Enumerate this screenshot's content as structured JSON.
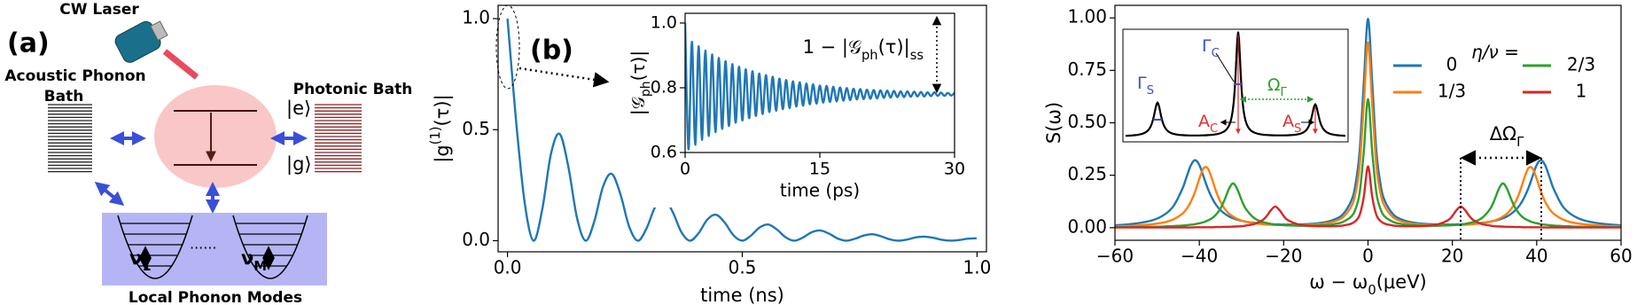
{
  "panel_a": {
    "label": "(a)",
    "laser": "CW Laser",
    "acoustic_bath": [
      "Acoustic Phonon",
      "Bath"
    ],
    "photonic_bath": "Photonic Bath",
    "excited_state": "|e⟩",
    "ground_state": "|g⟩",
    "mode_first": [
      "ν",
      {
        "sub": "1"
      }
    ],
    "mode_last": [
      "ν",
      {
        "sub": "M"
      }
    ],
    "dots": "......",
    "local_modes": "Local Phonon Modes"
  },
  "inset_c": {
    "gamma_s": [
      "Γ",
      {
        "sub": "S"
      }
    ],
    "gamma_c": [
      "Γ",
      {
        "sub": "C"
      }
    ],
    "omega_gamma": [
      "Ω",
      {
        "sub": "Γ"
      }
    ],
    "a_c": [
      "A",
      {
        "sub": "C"
      }
    ],
    "a_s": [
      "A",
      {
        "sub": "S"
      }
    ]
  },
  "chart_data": [
    {
      "type": "line",
      "panel_label": "(b)",
      "xlabel": "time (ns)",
      "ylabel": [
        "|g",
        {
          "sup": "(1)"
        },
        "(τ)|"
      ],
      "xlim": [
        -0.02,
        1.02
      ],
      "ylim": [
        -0.05,
        1.06
      ],
      "xticks": [
        {
          "value": 0,
          "label": "0.0"
        },
        0.5,
        {
          "value": 1,
          "label": "1.0"
        }
      ],
      "yticks": [
        {
          "value": 0,
          "label": "0.0"
        },
        0.5,
        {
          "value": 1,
          "label": "1.0"
        }
      ],
      "x": [
        0,
        0.0185,
        0.037,
        0.0555,
        0.074,
        0.0925,
        0.111,
        0.1295,
        0.148,
        0.1665,
        0.185,
        0.2035,
        0.222,
        0.2405,
        0.259,
        0.2775,
        0.296,
        0.3145,
        0.333,
        0.3515,
        0.37,
        0.3885,
        0.407,
        0.4255,
        0.444,
        0.4625,
        0.481,
        0.4995,
        0.518,
        0.5365,
        0.555,
        0.5735,
        0.592,
        0.6105,
        0.629,
        0.6475,
        0.666,
        0.6845,
        0.703,
        0.7215,
        0.74,
        0.7585,
        0.777,
        0.7955,
        0.814,
        0.8325,
        0.851,
        0.8695,
        0.888,
        0.9065,
        0.925,
        0.9435,
        0.962,
        0.9805,
        0.999
      ],
      "series": [
        {
          "color": "#1f77b4",
          "values": [
            1.0,
            0.534,
            0.165,
            0,
            0.141,
            0.39,
            0.481,
            0.334,
            0.103,
            0,
            0.088,
            0.244,
            0.301,
            0.209,
            0.064,
            0,
            0.055,
            0.152,
            0.188,
            0.131,
            0.04,
            0,
            0.034,
            0.095,
            0.117,
            0.082,
            0.025,
            0,
            0.022,
            0.059,
            0.073,
            0.051,
            0.016,
            0,
            0.014,
            0.038,
            0.046,
            0.032,
            0.01,
            0,
            0.009,
            0.023,
            0.029,
            0.02,
            0.006,
            0,
            0.005,
            0.015,
            0.018,
            0.013,
            0.004,
            0,
            0.003,
            0.009,
            0.011
          ]
        }
      ]
    },
    {
      "type": "line",
      "xlabel": "time (ps)",
      "ylabel": [
        "|𝒢",
        {
          "sub": "ph"
        },
        "(τ)|"
      ],
      "annotation": [
        "1 − |𝒢",
        {
          "sub": "ph"
        },
        "(τ)|",
        {
          "sub": "ss"
        }
      ],
      "xlim": [
        0,
        30
      ],
      "ylim": [
        0.6,
        1.03
      ],
      "xticks": [
        0,
        15,
        30
      ],
      "yticks": [
        0.6,
        0.8,
        {
          "value": 1,
          "label": "1.0"
        }
      ],
      "x": [
        0,
        0.375,
        0.75,
        1.125,
        1.5,
        1.875,
        2.25,
        2.625,
        3,
        3.375,
        3.75,
        4.125,
        4.5,
        4.875,
        5.25,
        5.625,
        6,
        6.375,
        6.75,
        7.125,
        7.5,
        7.875,
        8.25,
        8.625,
        9,
        9.375,
        9.75,
        10.125,
        10.5,
        10.875,
        11.25,
        11.625,
        12,
        12.375,
        12.75,
        13.125,
        13.5,
        13.875,
        14.25,
        14.625,
        15,
        15.375,
        15.75,
        16.125,
        16.5,
        16.875,
        17.25,
        17.625,
        18,
        18.375,
        18.75,
        19.125,
        19.5,
        19.875,
        20.25,
        20.625,
        21,
        21.375,
        21.75,
        22.125,
        22.5,
        22.875,
        23.25,
        23.625,
        24,
        24.375,
        24.75,
        25.125,
        25.5,
        25.875,
        26.25,
        26.625,
        27,
        27.375,
        27.75,
        28.125,
        28.5,
        28.875,
        29.25,
        29.625,
        30
      ],
      "series": [
        {
          "color": "#1f77b4",
          "values": [
            1.0,
            0.61,
            0.942,
            0.624,
            0.928,
            0.639,
            0.915,
            0.651,
            0.903,
            0.663,
            0.892,
            0.673,
            0.882,
            0.682,
            0.873,
            0.692,
            0.865,
            0.699,
            0.857,
            0.706,
            0.851,
            0.713,
            0.844,
            0.719,
            0.839,
            0.725,
            0.834,
            0.729,
            0.828,
            0.734,
            0.824,
            0.737,
            0.82,
            0.742,
            0.817,
            0.745,
            0.813,
            0.749,
            0.811,
            0.751,
            0.807,
            0.754,
            0.806,
            0.756,
            0.803,
            0.758,
            0.801,
            0.76,
            0.799,
            0.762,
            0.797,
            0.764,
            0.796,
            0.765,
            0.794,
            0.766,
            0.793,
            0.767,
            0.792,
            0.769,
            0.791,
            0.77,
            0.79,
            0.771,
            0.789,
            0.771,
            0.789,
            0.772,
            0.788,
            0.773,
            0.787,
            0.773,
            0.786,
            0.774,
            0.786,
            0.775,
            0.785,
            0.775,
            0.784,
            0.776,
            0.784
          ]
        }
      ]
    },
    {
      "type": "line",
      "panel_label": "(c)",
      "xlabel": [
        "ω − ω",
        {
          "sub": "0"
        },
        "(μeV)"
      ],
      "ylabel": "S(ω)",
      "legend_title": "η/ν =",
      "annotation": [
        "ΔΩ",
        {
          "sub": "Γ"
        }
      ],
      "xlim": [
        -60,
        60
      ],
      "ylim": [
        -0.06,
        1.06
      ],
      "xticks": [
        {
          "value": -60,
          "label": "−60"
        },
        {
          "value": -40,
          "label": "−40"
        },
        {
          "value": -20,
          "label": "−20"
        },
        0,
        20,
        40,
        60
      ],
      "yticks": [
        {
          "value": 0,
          "label": "0.00"
        },
        {
          "value": 0.25,
          "label": "0.25"
        },
        {
          "value": 0.5,
          "label": "0.50"
        },
        {
          "value": 0.75,
          "label": "0.75"
        },
        {
          "value": 1,
          "label": "1.00"
        }
      ],
      "x": [
        -60,
        -55,
        -51,
        -48,
        -46,
        -44,
        -43,
        -42,
        -41,
        -40,
        -39,
        -38,
        -37,
        -36,
        -35,
        -34,
        -33,
        -32,
        -31,
        -30,
        -29,
        -27,
        -25,
        -24,
        -23,
        -22,
        -21,
        -20,
        -19,
        -16,
        -13,
        -10,
        -8,
        -6,
        -4,
        -3,
        -2,
        -1,
        0,
        1,
        2,
        3,
        4,
        6,
        8,
        10,
        13,
        16,
        19,
        20,
        21,
        22,
        23,
        24,
        25,
        27,
        29,
        30,
        31,
        32,
        33,
        34,
        35,
        36,
        37,
        38,
        39,
        40,
        41,
        42,
        43,
        44,
        46,
        48,
        51,
        55,
        60
      ],
      "series": [
        {
          "name": "0",
          "color": "#1f77b4",
          "values": [
            0.011,
            0.02,
            0.036,
            0.066,
            0.107,
            0.186,
            0.243,
            0.298,
            0.322,
            0.299,
            0.244,
            0.187,
            0.142,
            0.108,
            0.084,
            0.067,
            0.054,
            0.045,
            0.038,
            0.033,
            0.029,
            0.023,
            0.019,
            0.018,
            0.017,
            0.016,
            0.016,
            0.015,
            0.015,
            0.016,
            0.019,
            0.027,
            0.039,
            0.063,
            0.127,
            0.203,
            0.361,
            0.691,
            0.995,
            0.691,
            0.361,
            0.203,
            0.127,
            0.063,
            0.039,
            0.027,
            0.019,
            0.016,
            0.015,
            0.015,
            0.016,
            0.016,
            0.017,
            0.018,
            0.019,
            0.023,
            0.029,
            0.033,
            0.038,
            0.045,
            0.054,
            0.067,
            0.084,
            0.108,
            0.142,
            0.187,
            0.244,
            0.299,
            0.322,
            0.298,
            0.243,
            0.186,
            0.107,
            0.066,
            0.036,
            0.02,
            0.011
          ]
        },
        {
          "name": "1/3",
          "color": "#ff7f0e",
          "values": [
            0.006,
            0.01,
            0.017,
            0.027,
            0.041,
            0.067,
            0.09,
            0.124,
            0.172,
            0.233,
            0.283,
            0.283,
            0.233,
            0.172,
            0.124,
            0.091,
            0.068,
            0.053,
            0.042,
            0.034,
            0.029,
            0.021,
            0.017,
            0.015,
            0.014,
            0.013,
            0.013,
            0.012,
            0.012,
            0.012,
            0.015,
            0.021,
            0.03,
            0.049,
            0.1,
            0.161,
            0.293,
            0.587,
            0.883,
            0.587,
            0.293,
            0.161,
            0.1,
            0.049,
            0.03,
            0.021,
            0.015,
            0.012,
            0.012,
            0.012,
            0.013,
            0.013,
            0.014,
            0.015,
            0.017,
            0.021,
            0.029,
            0.034,
            0.042,
            0.053,
            0.068,
            0.091,
            0.124,
            0.172,
            0.233,
            0.283,
            0.283,
            0.233,
            0.172,
            0.124,
            0.09,
            0.067,
            0.041,
            0.027,
            0.017,
            0.01,
            0.006
          ]
        },
        {
          "name": "2/3",
          "color": "#2ca02c",
          "values": [
            0.002,
            0.003,
            0.004,
            0.006,
            0.008,
            0.01,
            0.012,
            0.014,
            0.017,
            0.021,
            0.026,
            0.034,
            0.045,
            0.063,
            0.091,
            0.133,
            0.184,
            0.211,
            0.184,
            0.133,
            0.091,
            0.046,
            0.027,
            0.022,
            0.018,
            0.015,
            0.013,
            0.012,
            0.011,
            0.009,
            0.01,
            0.012,
            0.017,
            0.027,
            0.053,
            0.087,
            0.164,
            0.363,
            0.613,
            0.363,
            0.164,
            0.087,
            0.053,
            0.027,
            0.017,
            0.012,
            0.01,
            0.009,
            0.011,
            0.012,
            0.013,
            0.015,
            0.018,
            0.022,
            0.027,
            0.046,
            0.091,
            0.133,
            0.184,
            0.211,
            0.184,
            0.133,
            0.091,
            0.063,
            0.045,
            0.034,
            0.026,
            0.021,
            0.017,
            0.014,
            0.012,
            0.01,
            0.008,
            0.006,
            0.004,
            0.003,
            0.002
          ]
        },
        {
          "name": "1",
          "color": "#d62728",
          "values": [
            0.001,
            0.001,
            0.001,
            0.001,
            0.001,
            0.001,
            0.001,
            0.001,
            0.002,
            0.002,
            0.002,
            0.002,
            0.002,
            0.003,
            0.003,
            0.004,
            0.004,
            0.005,
            0.006,
            0.007,
            0.01,
            0.017,
            0.036,
            0.056,
            0.084,
            0.101,
            0.084,
            0.056,
            0.036,
            0.013,
            0.008,
            0.007,
            0.007,
            0.01,
            0.019,
            0.031,
            0.06,
            0.147,
            0.292,
            0.147,
            0.06,
            0.031,
            0.019,
            0.01,
            0.007,
            0.007,
            0.008,
            0.013,
            0.036,
            0.056,
            0.084,
            0.101,
            0.084,
            0.056,
            0.036,
            0.017,
            0.01,
            0.007,
            0.006,
            0.005,
            0.004,
            0.004,
            0.003,
            0.003,
            0.002,
            0.002,
            0.002,
            0.002,
            0.002,
            0.001,
            0.001,
            0.001,
            0.001,
            0.001,
            0.001,
            0.001,
            0.001
          ]
        }
      ]
    }
  ]
}
